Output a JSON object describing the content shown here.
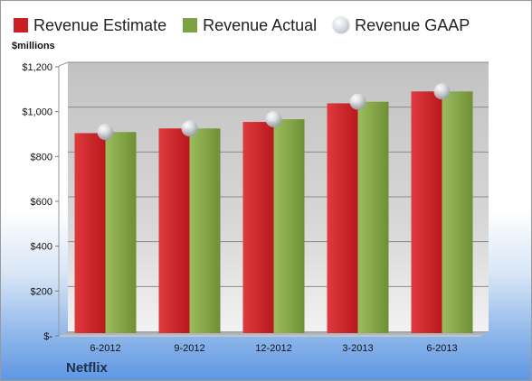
{
  "company": "Netflix",
  "colors": {
    "estimate": "#cc1f24",
    "actual": "#7fa043",
    "gaap": "#c8cdd3"
  },
  "chart_data": {
    "type": "bar",
    "title": "",
    "ylabel": "$millions",
    "ylim": [
      0,
      1200
    ],
    "yticks": [
      0,
      200,
      400,
      600,
      800,
      1000,
      1200
    ],
    "ytick_labels": [
      "$-",
      "$200",
      "$400",
      "$600",
      "$800",
      "$1,000",
      "$1,200"
    ],
    "categories": [
      "6-2012",
      "9-2012",
      "12-2012",
      "3-2013",
      "6-2013"
    ],
    "legend_position": "top",
    "grid": true,
    "series": [
      {
        "name": "Revenue Estimate",
        "kind": "bar",
        "values": [
          884,
          905,
          934,
          1017,
          1070
        ]
      },
      {
        "name": "Revenue Actual",
        "kind": "bar",
        "values": [
          889,
          905,
          946,
          1024,
          1070
        ]
      },
      {
        "name": "Revenue GAAP",
        "kind": "marker",
        "values": [
          889,
          905,
          946,
          1024,
          1070
        ]
      }
    ]
  }
}
